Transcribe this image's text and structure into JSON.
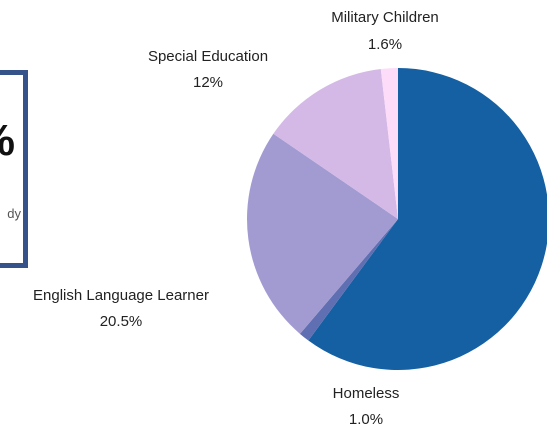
{
  "card": {
    "big_text": "%",
    "small_text": "dy",
    "border_color": "#35538a"
  },
  "chart_data": {
    "type": "pie",
    "slices": [
      {
        "name": "",
        "value": 52.9,
        "label": "",
        "color": "#1460a2"
      },
      {
        "name": "Homeless",
        "value": 1.0,
        "label": "1.0%",
        "color": "#5f6fb2"
      },
      {
        "name": "English Language Learner",
        "value": 20.5,
        "label": "20.5%",
        "color": "#a29bd2"
      },
      {
        "name": "Special Education",
        "value": 12,
        "label": "12%",
        "color": "#d4b9e6"
      },
      {
        "name": "Military Children",
        "value": 1.6,
        "label": "1.6%",
        "color": "#fcdcf8"
      }
    ]
  }
}
